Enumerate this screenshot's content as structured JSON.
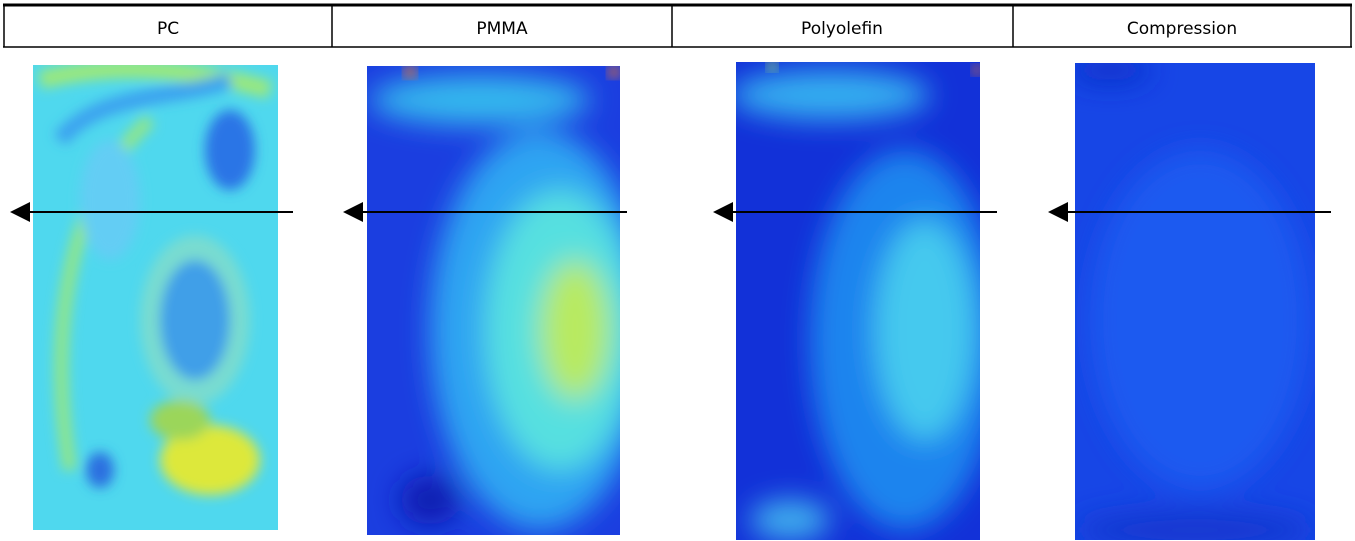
{
  "header": {
    "columns": [
      "PC",
      "PMMA",
      "Polyolefin",
      "Compression"
    ]
  }
}
